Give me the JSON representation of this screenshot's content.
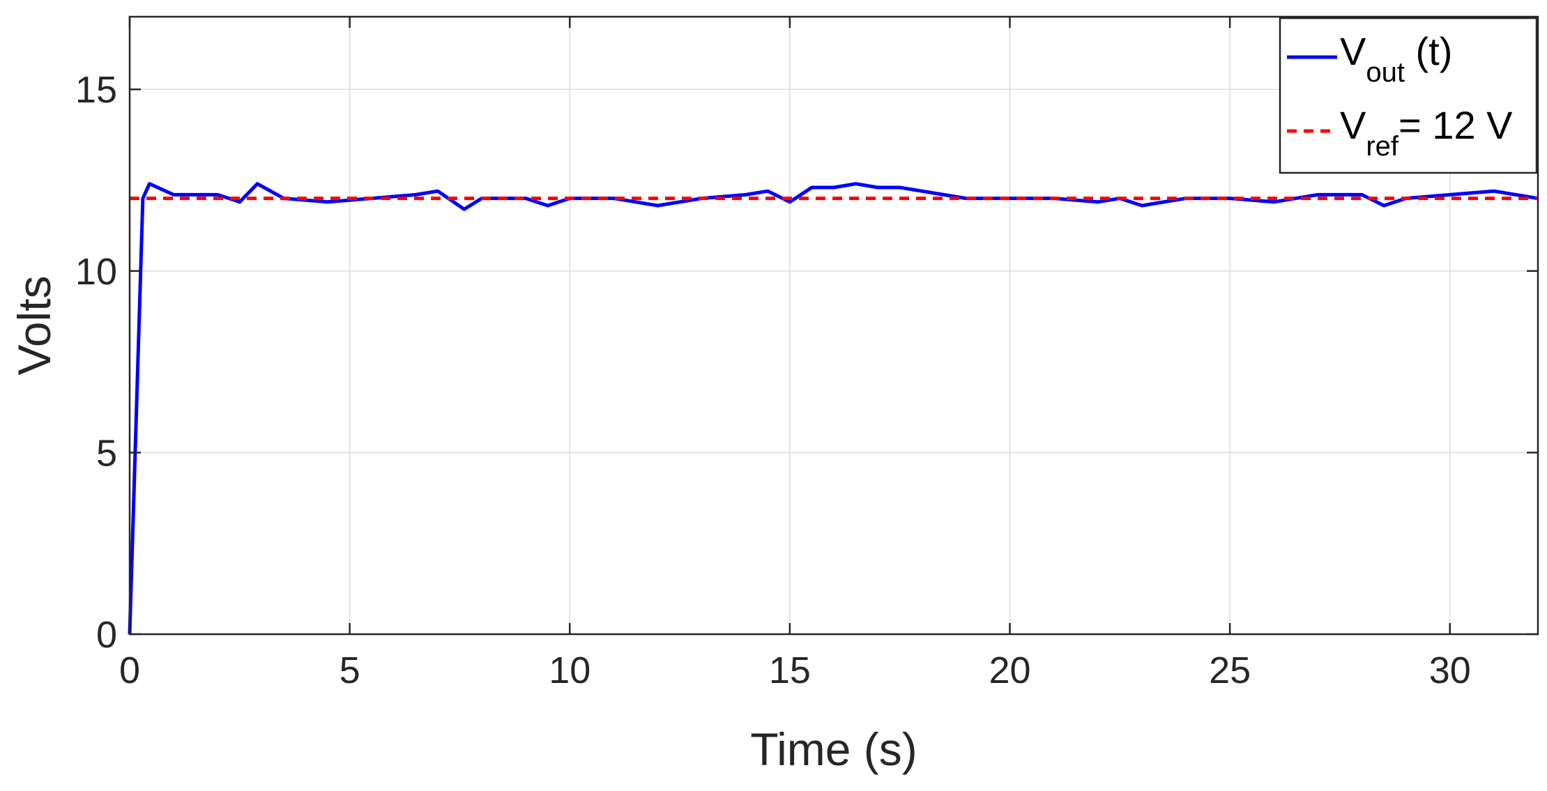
{
  "chart_data": {
    "type": "line",
    "title": "",
    "xlabel": "Time (s)",
    "ylabel": "Volts",
    "xlim": [
      0,
      32
    ],
    "ylim": [
      0,
      17
    ],
    "xticks": [
      0,
      5,
      10,
      15,
      20,
      25,
      30
    ],
    "yticks": [
      0,
      5,
      10,
      15
    ],
    "grid": true,
    "legend_position": "top-right",
    "series": [
      {
        "name_main": "V",
        "name_sub": "out",
        "name_suffix": " (t)",
        "style": "solid",
        "color": "#0000ff",
        "x": [
          0,
          0.3,
          0.45,
          1,
          2,
          2.5,
          2.9,
          3.5,
          4.5,
          5.5,
          6.5,
          7,
          7.6,
          8,
          9,
          9.5,
          10,
          11,
          11.5,
          12,
          13,
          14,
          14.5,
          15,
          15.5,
          16,
          16.5,
          17,
          17.5,
          18,
          18.5,
          19,
          20,
          21,
          22,
          22.5,
          23,
          24,
          25,
          26,
          27,
          28,
          28.5,
          29,
          30,
          31,
          32
        ],
        "y": [
          0,
          12.0,
          12.4,
          12.1,
          12.1,
          11.9,
          12.4,
          12.0,
          11.9,
          12.0,
          12.1,
          12.2,
          11.7,
          12.0,
          12.0,
          11.8,
          12.0,
          12.0,
          11.9,
          11.8,
          12.0,
          12.1,
          12.2,
          11.9,
          12.3,
          12.3,
          12.4,
          12.3,
          12.3,
          12.2,
          12.1,
          12.0,
          12.0,
          12.0,
          11.9,
          12.0,
          11.8,
          12.0,
          12.0,
          11.9,
          12.1,
          12.1,
          11.8,
          12.0,
          12.1,
          12.2,
          12.0
        ]
      },
      {
        "name_main": "V",
        "name_sub": "ref",
        "name_suffix": "= 12 V",
        "style": "dashed",
        "color": "#ff0000",
        "x": [
          0,
          32
        ],
        "y": [
          12,
          12
        ]
      }
    ]
  }
}
